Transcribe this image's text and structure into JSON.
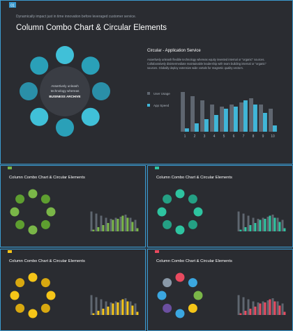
{
  "slides": [
    {
      "id": "main",
      "badge": "01",
      "accent": "#3b9bd0",
      "subtitle": "Dynamically impact just in time innovation before leveraged customer service.",
      "title": "Column Combo Chart & Circular Elements",
      "center_text_1": "Assertively unleash",
      "center_text_2": "technology whereas",
      "center_text_3": "BUSINESS ARCHIVE",
      "right_heading": "Circular  -  Application  Service",
      "para_1": "Assertively unleash flexible technology whereas equity invested internal or \"organic\" sources.",
      "para_2": "Collaboratively disintermediate maintainable leadership with team building internal or \"organic\"",
      "para_3": "sources. Globally deploy extensive wide vortals for magnetic quality vectors.",
      "circle_colors": [
        "#40c0d8",
        "#2aa0b8",
        "#2a8fa8",
        "#40c0d8",
        "#2aa0b8",
        "#40c0d8",
        "#2a8fa8",
        "#2aa0b8"
      ]
    },
    {
      "id": "s1",
      "title": "Column Combo Chart & Circular Elements",
      "accent": "#7ab648",
      "circle_colors": [
        "#7ab648",
        "#5e9e30",
        "#7ab648",
        "#5e9e30",
        "#7ab648",
        "#5e9e30",
        "#7ab648",
        "#5e9e30"
      ]
    },
    {
      "id": "s2",
      "title": "Column Combo Chart & Circular Elements",
      "accent": "#2ec4a0",
      "circle_colors": [
        "#2ec4a0",
        "#24a084",
        "#2ec4a0",
        "#24a084",
        "#2ec4a0",
        "#24a084",
        "#2ec4a0",
        "#24a084"
      ]
    },
    {
      "id": "s3",
      "title": "Column Combo Chart & Circular Elements",
      "accent": "#f5c518",
      "circle_colors": [
        "#f5c518",
        "#d8a810",
        "#f5c518",
        "#d8a810",
        "#f5c518",
        "#d8a810",
        "#f5c518",
        "#d8a810"
      ]
    },
    {
      "id": "s4",
      "title": "Column Combo Chart & Circular Elements",
      "accent": "#e84a5f",
      "circle_colors": [
        "#e84a5f",
        "#3ba7e0",
        "#7ab648",
        "#f5c518",
        "#3ba7e0",
        "#6b4fa0",
        "#3ba7e0",
        "#8a99a8"
      ]
    }
  ],
  "chart_data": {
    "type": "bar",
    "categories": [
      "1",
      "2",
      "3",
      "4",
      "5",
      "6",
      "7",
      "8",
      "9",
      "10"
    ],
    "series": [
      {
        "name": "User Usage",
        "color": "#5f6670",
        "values": [
          9.5,
          8.5,
          7.5,
          6.5,
          6.0,
          6.5,
          7.0,
          8.0,
          6.5,
          5.5
        ]
      },
      {
        "name": "App Speed",
        "color": "#40b6d8",
        "values": [
          0.8,
          2.0,
          3.0,
          4.0,
          5.5,
          6.0,
          7.5,
          6.5,
          4.5,
          1.5
        ]
      }
    ],
    "ylim": [
      0,
      10
    ]
  }
}
